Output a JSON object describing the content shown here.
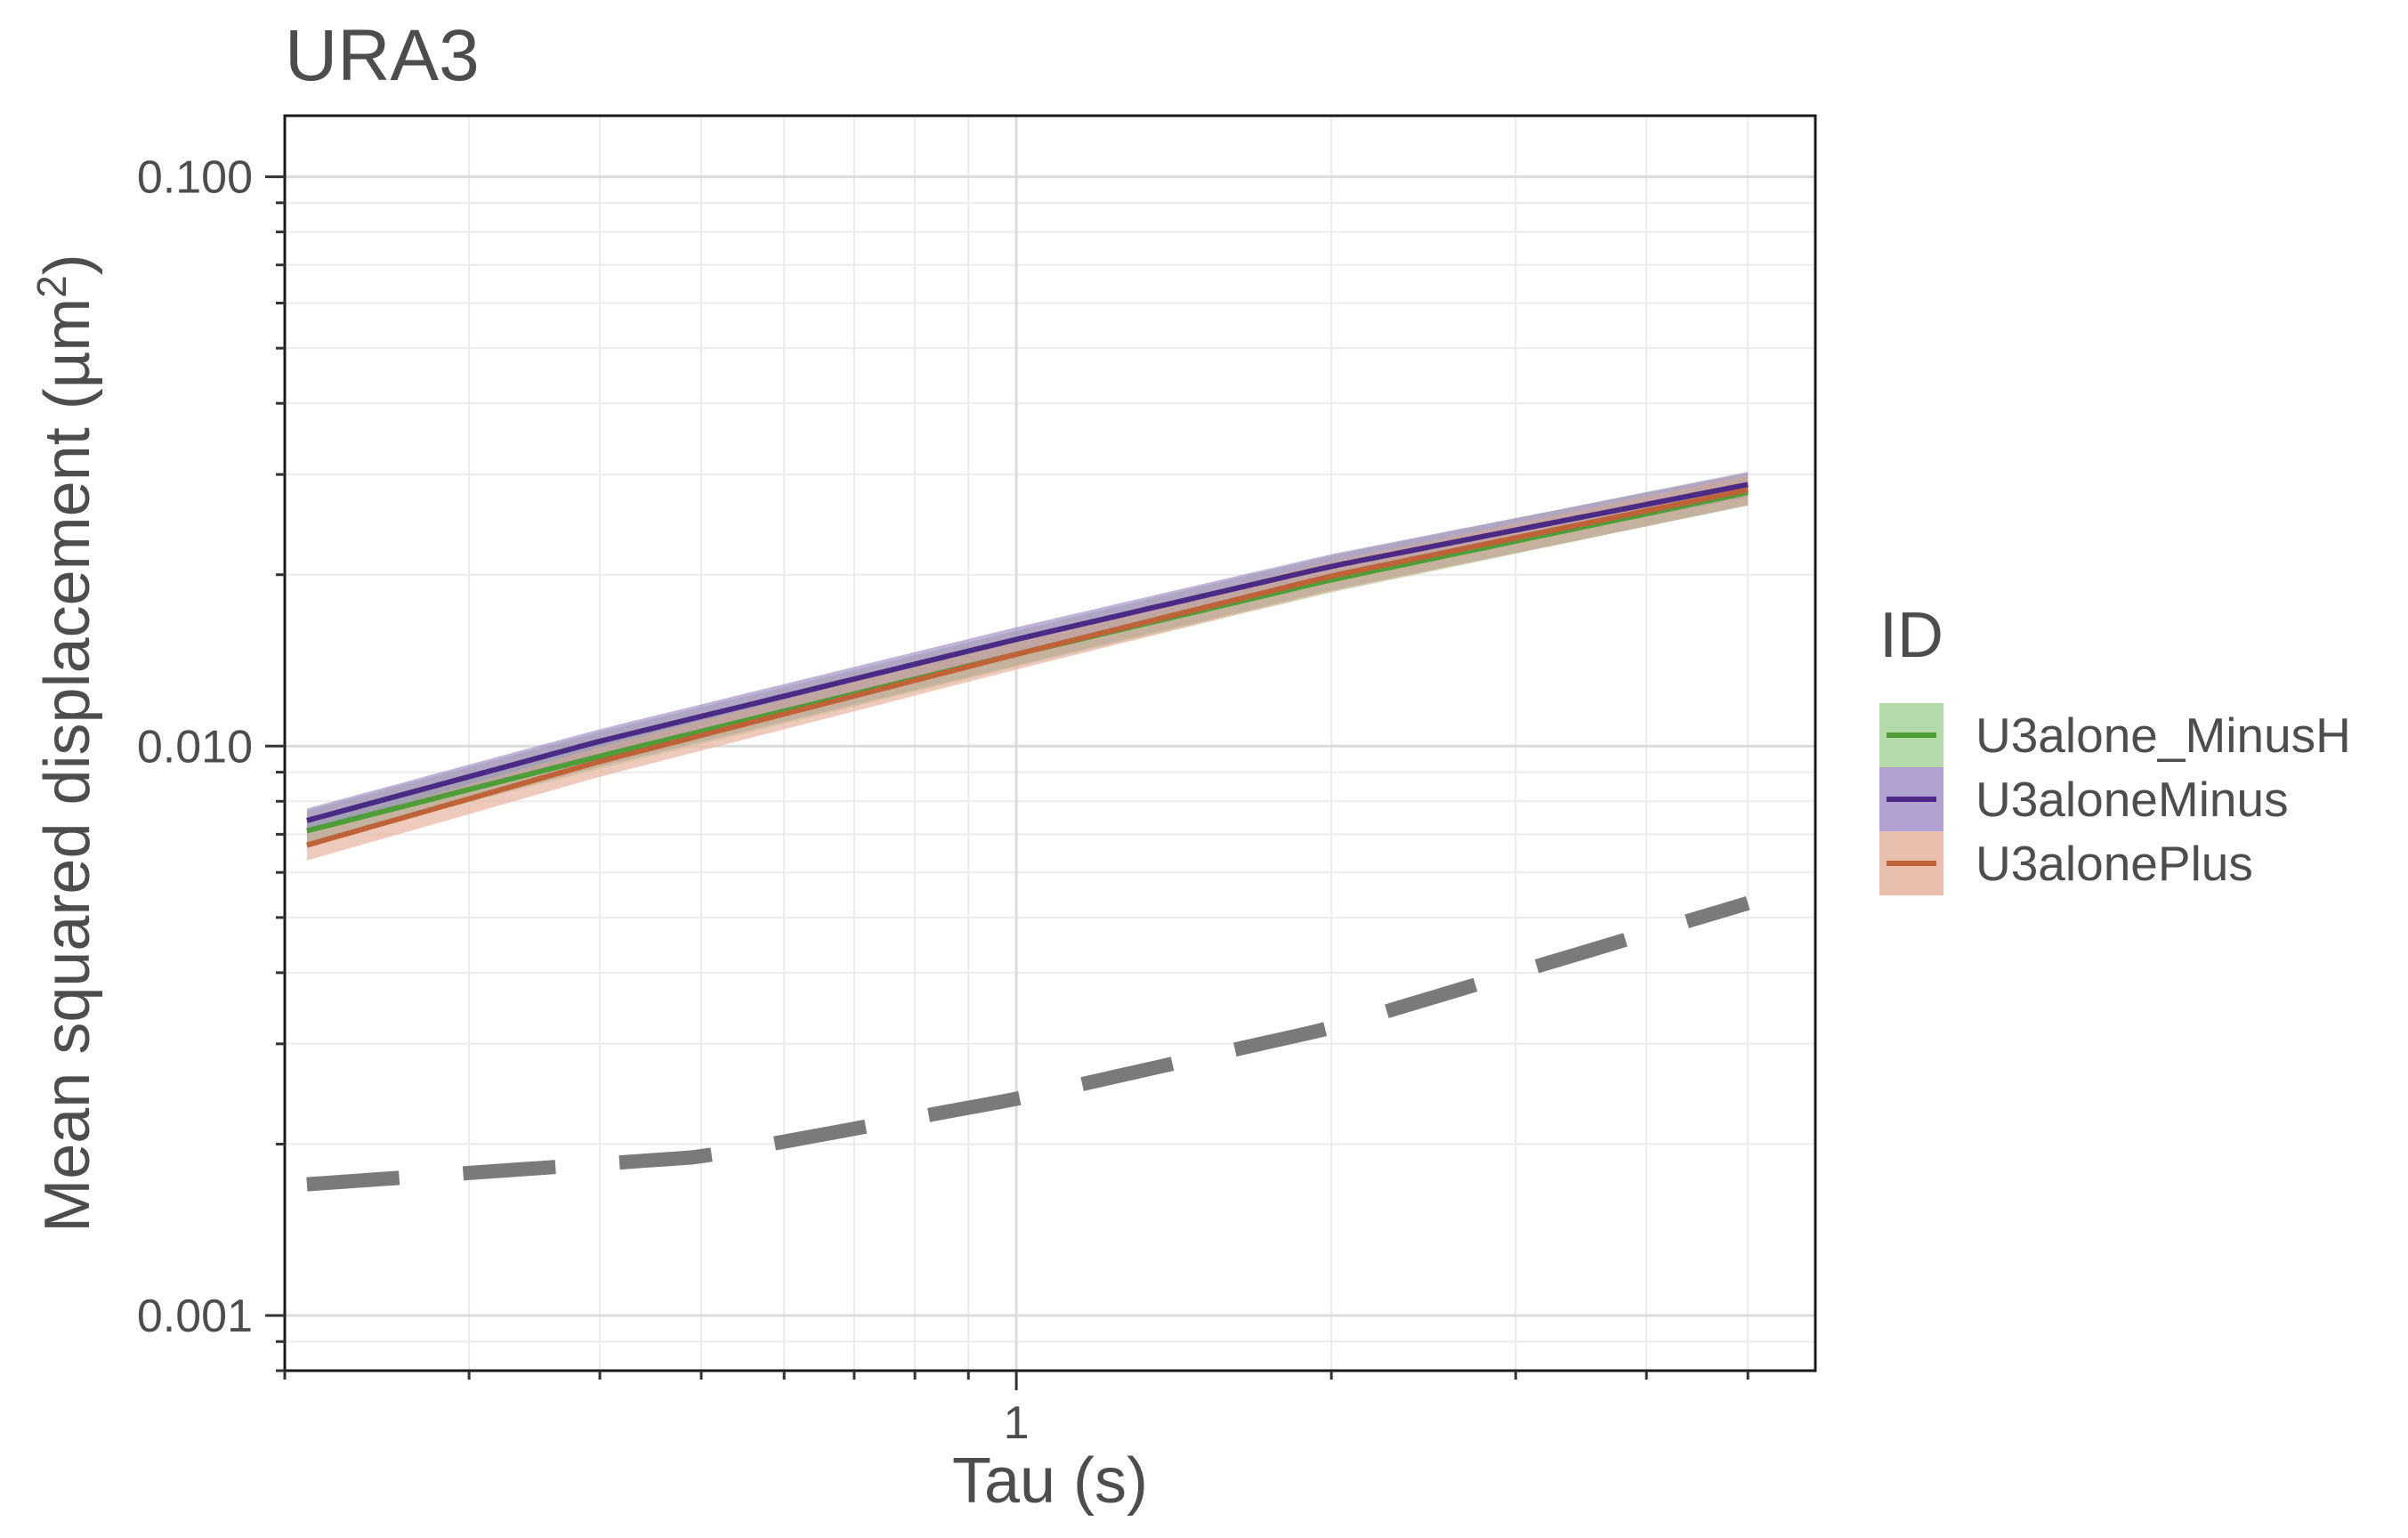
{
  "chart_data": {
    "type": "line",
    "title": "URA3",
    "xlabel": "Tau (s)",
    "ylabel": "Mean squared displacement (µm",
    "ylabel_sup": "2",
    "ylabel_end": ")",
    "x_scale": "log",
    "y_scale": "log",
    "xlim": [
      0.2,
      5.8
    ],
    "ylim": [
      0.0008,
      0.128
    ],
    "x_ticks": [
      {
        "value": 1,
        "label": "1"
      }
    ],
    "y_ticks": [
      {
        "value": 0.001,
        "label": "0.001"
      },
      {
        "value": 0.01,
        "label": "0.010"
      },
      {
        "value": 0.1,
        "label": "0.100"
      }
    ],
    "grid": true,
    "legend": {
      "title": "ID",
      "position": "right"
    },
    "series": [
      {
        "name": "U3alone_MinusH",
        "color": "#4d9e37",
        "fill": "#a8d49a",
        "x": [
          0.21,
          0.4,
          1.0,
          2.0,
          5.0
        ],
        "values": [
          0.0071,
          0.0096,
          0.0145,
          0.0196,
          0.0279
        ],
        "band_width": 0.05
      },
      {
        "name": "U3aloneMinus",
        "color": "#4b2a85",
        "fill": "#a592c9",
        "x": [
          0.21,
          0.4,
          1.0,
          2.0,
          5.0
        ],
        "values": [
          0.0074,
          0.0102,
          0.0154,
          0.0207,
          0.0288
        ],
        "band_width": 0.05
      },
      {
        "name": "U3alonePlus",
        "color": "#c06238",
        "fill": "#e7b4a0",
        "x": [
          0.21,
          0.4,
          1.0,
          2.0,
          5.0
        ],
        "values": [
          0.0067,
          0.0094,
          0.0145,
          0.0199,
          0.0282
        ],
        "band_width": 0.06
      },
      {
        "color": "#7a7a7a",
        "style": "dashed",
        "x": [
          0.21,
          0.5,
          1.0,
          2.0,
          5.0
        ],
        "values": [
          0.0017,
          0.0019,
          0.0024,
          0.0032,
          0.0053
        ]
      }
    ],
    "overlay_band": {
      "x": [
        0.21,
        0.4,
        1.0,
        2.0,
        5.0
      ],
      "values": [
        0.0072,
        0.0099,
        0.0149,
        0.0202,
        0.0284
      ],
      "band_width": 0.07,
      "fill": "#8a8a8a"
    },
    "minor_x_ticks": [
      0.2,
      0.3,
      0.4,
      0.5,
      0.6,
      0.7,
      0.8,
      0.9,
      2,
      3,
      4,
      5
    ],
    "minor_y_ticks": [
      0.0008,
      0.0009,
      0.002,
      0.003,
      0.004,
      0.005,
      0.006,
      0.007,
      0.008,
      0.009,
      0.02,
      0.03,
      0.04,
      0.05,
      0.06,
      0.07,
      0.08,
      0.09
    ]
  }
}
